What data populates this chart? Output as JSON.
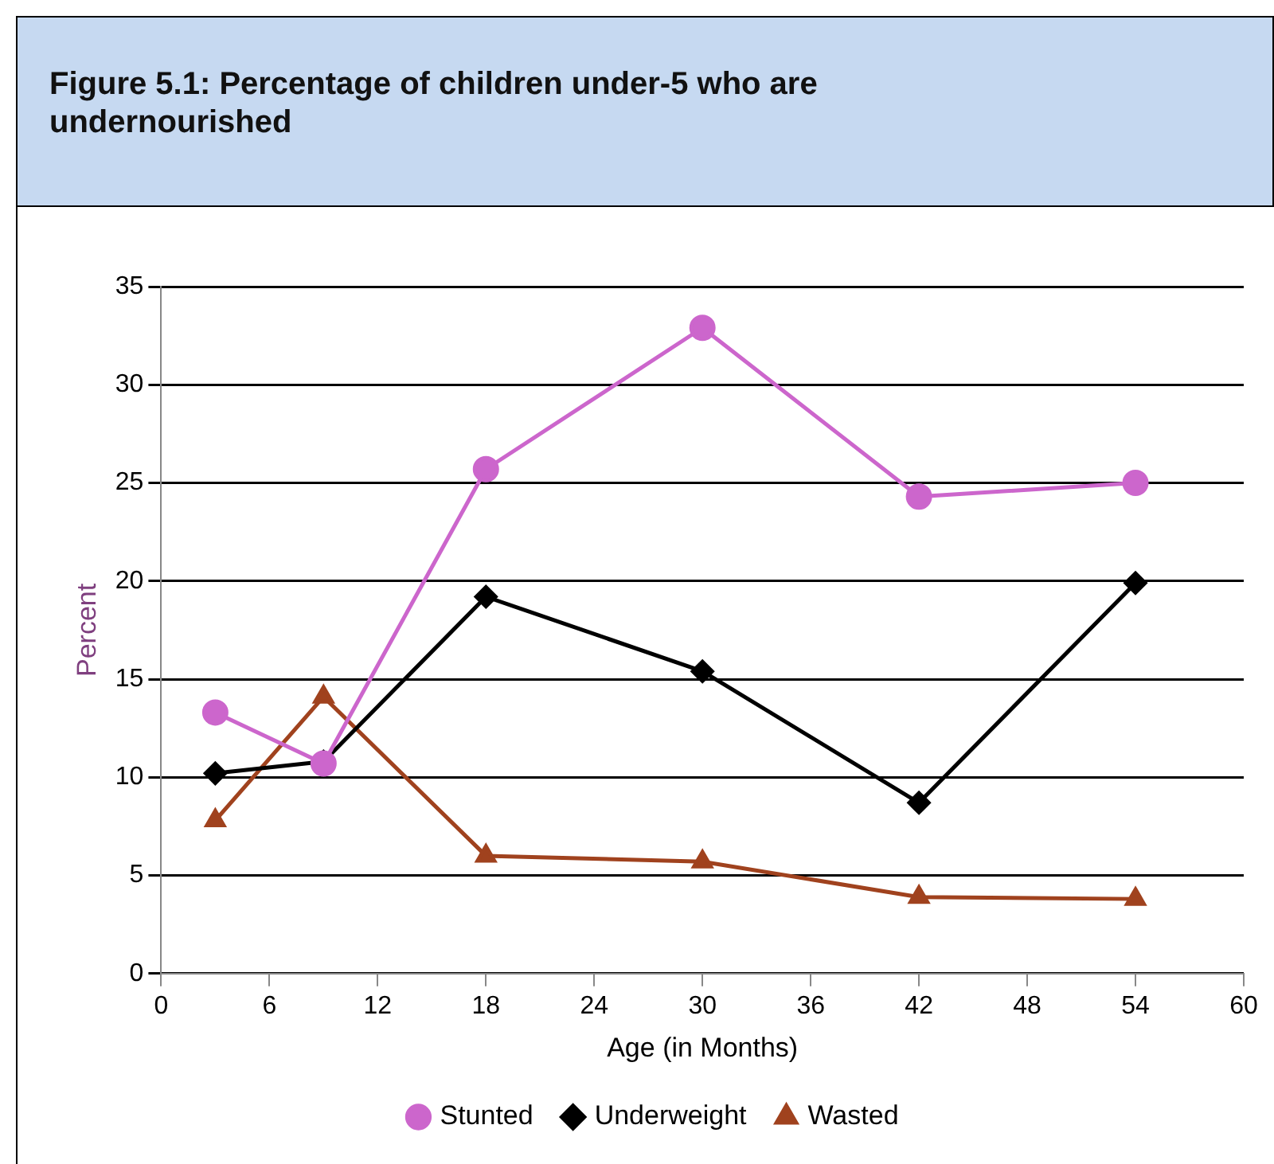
{
  "chart_data": {
    "type": "line",
    "title": "Figure 5.1: Percentage of children under-5 who are undernourished",
    "xlabel": "Age (in Months)",
    "ylabel": "Percent",
    "x": [
      3,
      9,
      18,
      30,
      42,
      54
    ],
    "series": [
      {
        "name": "Underweight",
        "color": "#000000",
        "marker": "diamond",
        "values": [
          10.2,
          10.8,
          19.2,
          15.4,
          8.7,
          19.9
        ]
      },
      {
        "name": "Stunted",
        "color": "#cc66cc",
        "marker": "circle",
        "values": [
          13.3,
          10.7,
          25.7,
          32.9,
          24.3,
          25.0
        ]
      },
      {
        "name": "Wasted",
        "color": "#a0421e",
        "marker": "triangle",
        "values": [
          7.8,
          14.1,
          6.0,
          5.7,
          3.9,
          3.8
        ]
      }
    ],
    "xlim": [
      0,
      60
    ],
    "xticks": [
      0,
      6,
      12,
      18,
      24,
      30,
      36,
      42,
      48,
      54,
      60
    ],
    "ylim": [
      0,
      35
    ],
    "yticks": [
      0,
      5,
      10,
      15,
      20,
      25,
      30,
      35
    ],
    "grid": "y",
    "legend": "bottom"
  }
}
